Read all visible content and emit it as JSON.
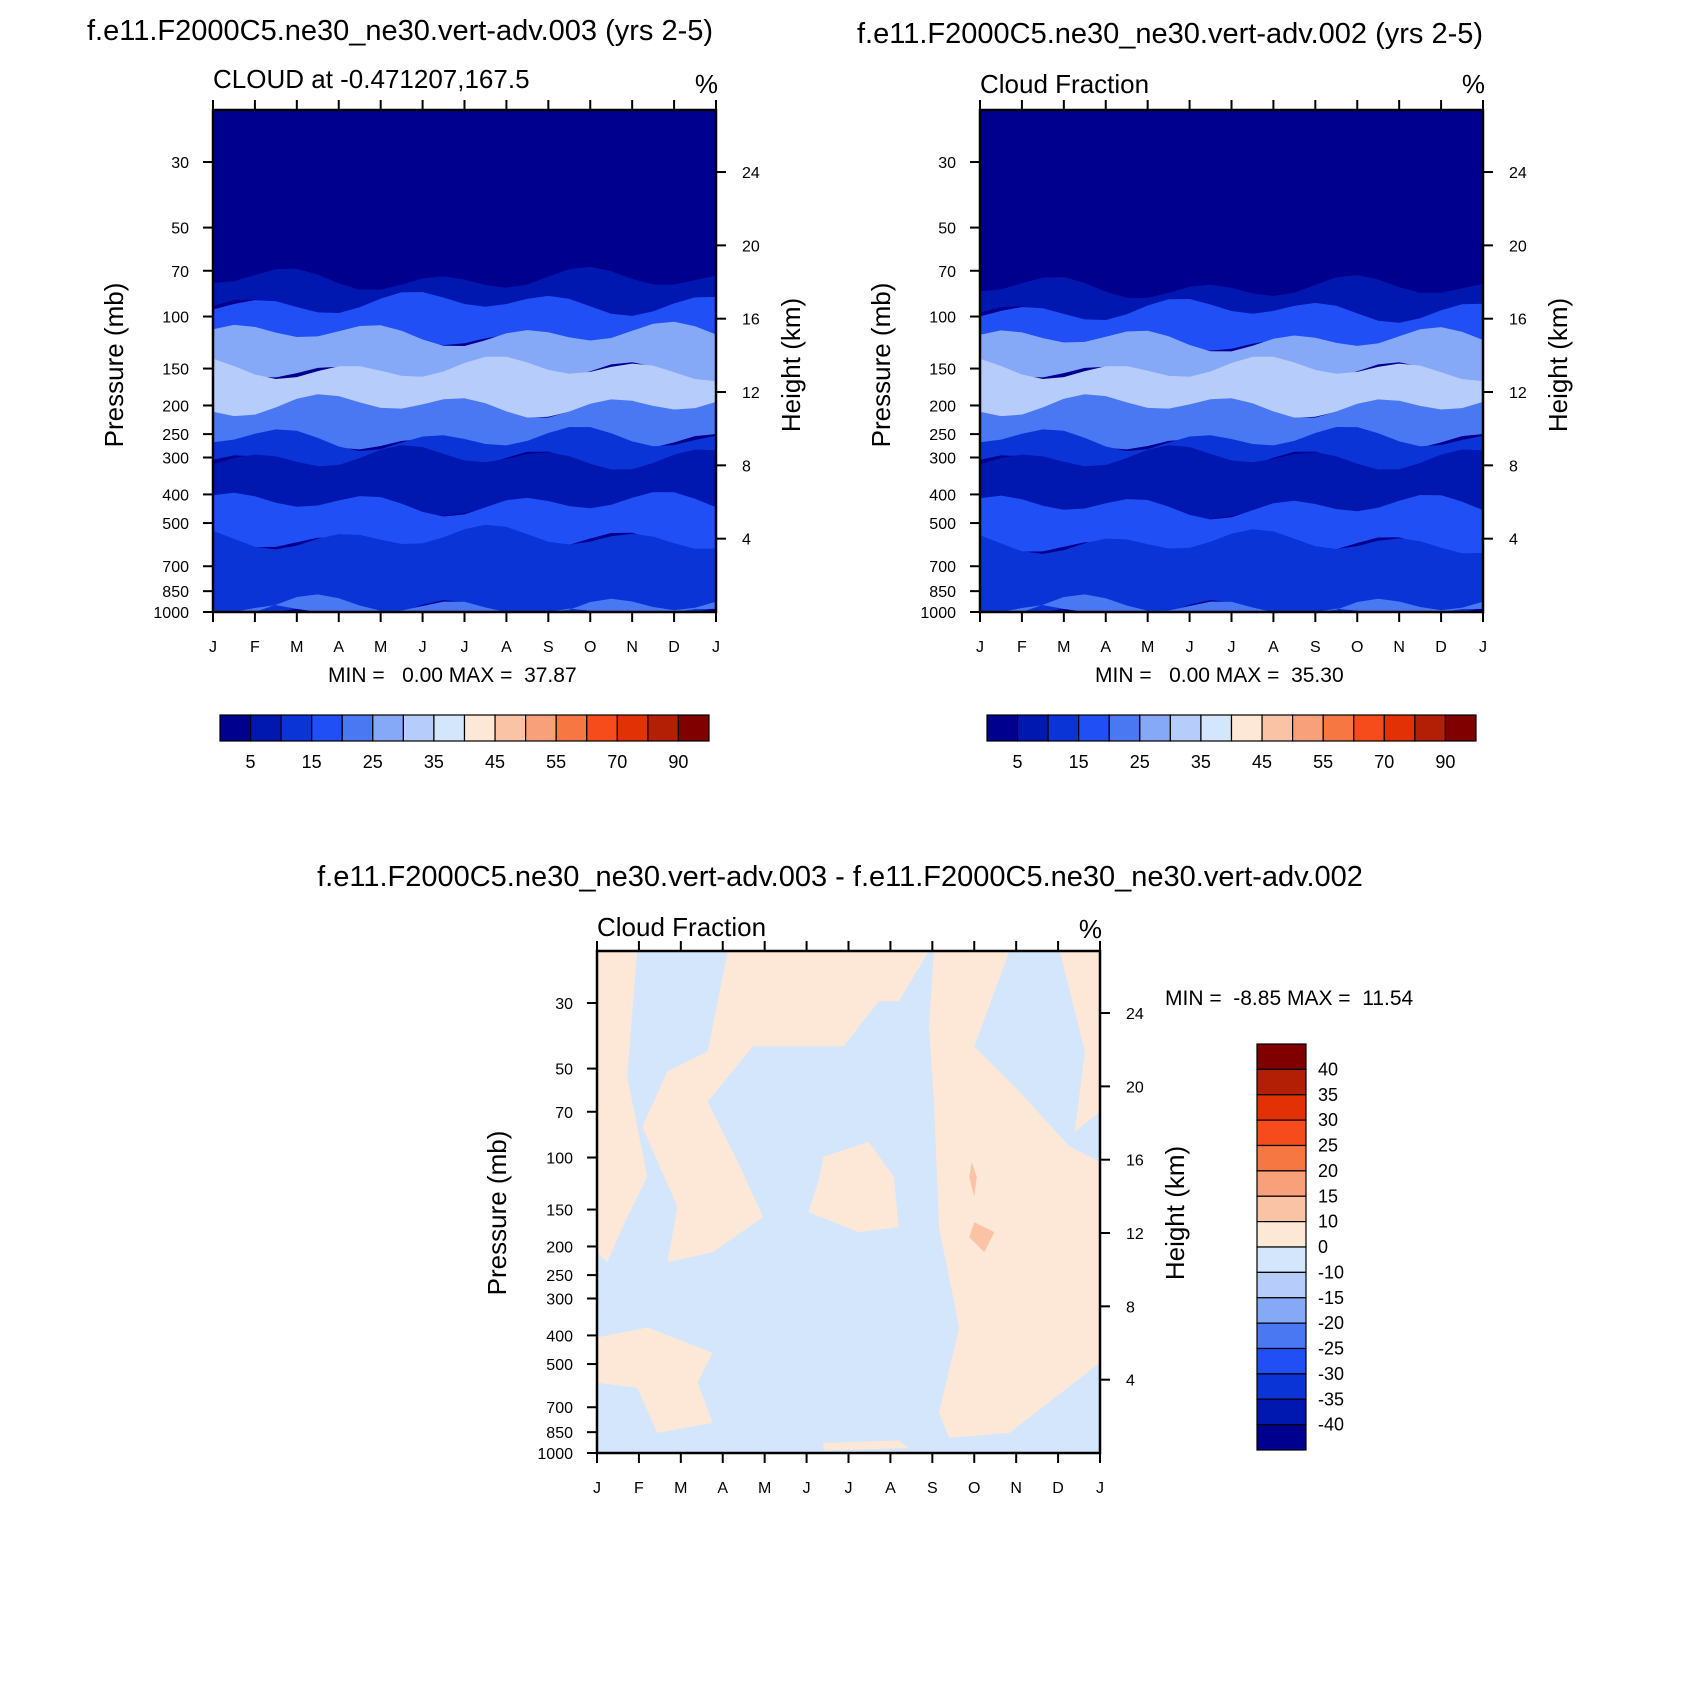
{
  "chart_data": [
    {
      "type": "heatmap",
      "title": "f.e11.F2000C5.ne30_ne30.vert-adv.003 (yrs 2-5)",
      "subtitle": "CLOUD at -0.471207,167.5",
      "units": "%",
      "xlabel": "",
      "ylabel": "Pressure (mb)",
      "ylabel_right": "Height (km)",
      "x_ticks": [
        "J",
        "F",
        "M",
        "A",
        "M",
        "J",
        "J",
        "A",
        "S",
        "O",
        "N",
        "D",
        "J"
      ],
      "y_ticks": [
        "30",
        "50",
        "70",
        "100",
        "150",
        "200",
        "250",
        "300",
        "400",
        "500",
        "700",
        "850",
        "1000"
      ],
      "y_ticks_right": [
        "24",
        "20",
        "16",
        "12",
        "8",
        "4"
      ],
      "stats": "MIN =   0.00 MAX =  37.87",
      "colorbar_labels": [
        "5",
        "15",
        "25",
        "35",
        "45",
        "55",
        "70",
        "90"
      ],
      "bands": [
        {
          "p_top": 20,
          "p_bottom": 75,
          "value": 2,
          "color": "#00008f"
        },
        {
          "p_top": 75,
          "p_bottom": 90,
          "value": 7,
          "color": "#0018b0"
        },
        {
          "p_top": 90,
          "p_bottom": 115,
          "value": 17,
          "color": "#1f4ff5"
        },
        {
          "p_top": 115,
          "p_bottom": 150,
          "value": 27,
          "color": "#86a9f7"
        },
        {
          "p_top": 150,
          "p_bottom": 200,
          "value": 32,
          "color": "#b6ccfa"
        },
        {
          "p_top": 200,
          "p_bottom": 260,
          "value": 22,
          "color": "#4a78f2"
        },
        {
          "p_top": 260,
          "p_bottom": 300,
          "value": 12,
          "color": "#0a34d6"
        },
        {
          "p_top": 300,
          "p_bottom": 430,
          "value": 7,
          "color": "#0018b0"
        },
        {
          "p_top": 430,
          "p_bottom": 560,
          "value": 17,
          "color": "#1f4ff5"
        },
        {
          "p_top": 560,
          "p_bottom": 960,
          "value": 12,
          "color": "#0a34d6"
        },
        {
          "p_top": 960,
          "p_bottom": 1000,
          "value": 22,
          "color": "#4a78f2"
        }
      ]
    },
    {
      "type": "heatmap",
      "title": "f.e11.F2000C5.ne30_ne30.vert-adv.002 (yrs 2-5)",
      "subtitle": "Cloud Fraction",
      "units": "%",
      "xlabel": "",
      "ylabel": "Pressure (mb)",
      "ylabel_right": "Height (km)",
      "x_ticks": [
        "J",
        "F",
        "M",
        "A",
        "M",
        "J",
        "J",
        "A",
        "S",
        "O",
        "N",
        "D",
        "J"
      ],
      "y_ticks": [
        "30",
        "50",
        "70",
        "100",
        "150",
        "200",
        "250",
        "300",
        "400",
        "500",
        "700",
        "850",
        "1000"
      ],
      "y_ticks_right": [
        "24",
        "20",
        "16",
        "12",
        "8",
        "4"
      ],
      "stats": "MIN =   0.00 MAX =  35.30",
      "colorbar_labels": [
        "5",
        "15",
        "25",
        "35",
        "45",
        "55",
        "70",
        "90"
      ],
      "bands": [
        {
          "p_top": 20,
          "p_bottom": 80,
          "value": 2,
          "color": "#00008f"
        },
        {
          "p_top": 80,
          "p_bottom": 95,
          "value": 7,
          "color": "#0018b0"
        },
        {
          "p_top": 95,
          "p_bottom": 120,
          "value": 17,
          "color": "#1f4ff5"
        },
        {
          "p_top": 120,
          "p_bottom": 150,
          "value": 27,
          "color": "#86a9f7"
        },
        {
          "p_top": 150,
          "p_bottom": 200,
          "value": 32,
          "color": "#b6ccfa"
        },
        {
          "p_top": 200,
          "p_bottom": 260,
          "value": 22,
          "color": "#4a78f2"
        },
        {
          "p_top": 260,
          "p_bottom": 300,
          "value": 12,
          "color": "#0a34d6"
        },
        {
          "p_top": 300,
          "p_bottom": 440,
          "value": 7,
          "color": "#0018b0"
        },
        {
          "p_top": 440,
          "p_bottom": 580,
          "value": 17,
          "color": "#1f4ff5"
        },
        {
          "p_top": 580,
          "p_bottom": 960,
          "value": 12,
          "color": "#0a34d6"
        },
        {
          "p_top": 960,
          "p_bottom": 1000,
          "value": 22,
          "color": "#4a78f2"
        }
      ]
    },
    {
      "type": "heatmap",
      "title": "f.e11.F2000C5.ne30_ne30.vert-adv.003 - f.e11.F2000C5.ne30_ne30.vert-adv.002",
      "subtitle": "Cloud Fraction",
      "units": "%",
      "xlabel": "",
      "ylabel": "Pressure (mb)",
      "ylabel_right": "Height (km)",
      "x_ticks": [
        "J",
        "F",
        "M",
        "A",
        "M",
        "J",
        "J",
        "A",
        "S",
        "O",
        "N",
        "D",
        "J"
      ],
      "y_ticks": [
        "30",
        "50",
        "70",
        "100",
        "150",
        "200",
        "250",
        "300",
        "400",
        "500",
        "700",
        "850",
        "1000"
      ],
      "y_ticks_right": [
        "24",
        "20",
        "16",
        "12",
        "8",
        "4"
      ],
      "stats": "MIN =  -8.85 MAX =  11.54",
      "colorbar_labels": [
        "40",
        "35",
        "30",
        "25",
        "20",
        "15",
        "10",
        "0",
        "-10",
        "-15",
        "-20",
        "-25",
        "-30",
        "-35",
        "-40"
      ],
      "background_value": -5,
      "background_color": "#d4e6fc",
      "positive_color": "#fde8d8",
      "accent_color": "#fbc3a6"
    }
  ],
  "colors": {
    "sequential": [
      "#00008f",
      "#0018b0",
      "#0a34d6",
      "#1f4ff5",
      "#4a78f2",
      "#86a9f7",
      "#b6ccfa",
      "#d4e6fc",
      "#fde8d8",
      "#fbc3a6",
      "#f8a07a",
      "#f67742",
      "#f64b1a",
      "#e33106",
      "#b21f05",
      "#800000"
    ],
    "diverging": [
      "#800000",
      "#b21f05",
      "#e33106",
      "#f64b1a",
      "#f67742",
      "#f8a07a",
      "#fbc3a6",
      "#fde8d8",
      "#d4e6fc",
      "#b6ccfa",
      "#86a9f7",
      "#4a78f2",
      "#1f4ff5",
      "#0a34d6",
      "#0018b0",
      "#00008f"
    ]
  }
}
